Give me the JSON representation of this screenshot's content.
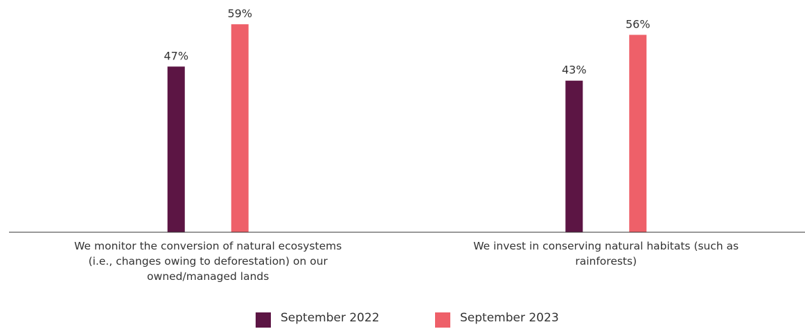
{
  "chart_data": {
    "type": "bar",
    "categories": [
      "We monitor the conversion of natural ecosystems (i.e., changes owing to deforestation) on our owned/managed lands",
      "We invest in conserving natural habitats (such as rainforests)"
    ],
    "series": [
      {
        "name": "September 2022",
        "color": "#5c1544",
        "values": [
          47,
          43
        ],
        "value_labels": [
          "47%",
          "43%"
        ]
      },
      {
        "name": "September 2023",
        "color": "#ee6069",
        "values": [
          59,
          56
        ],
        "value_labels": [
          "59%",
          "56%"
        ]
      }
    ],
    "ylim": [
      0,
      60
    ]
  }
}
